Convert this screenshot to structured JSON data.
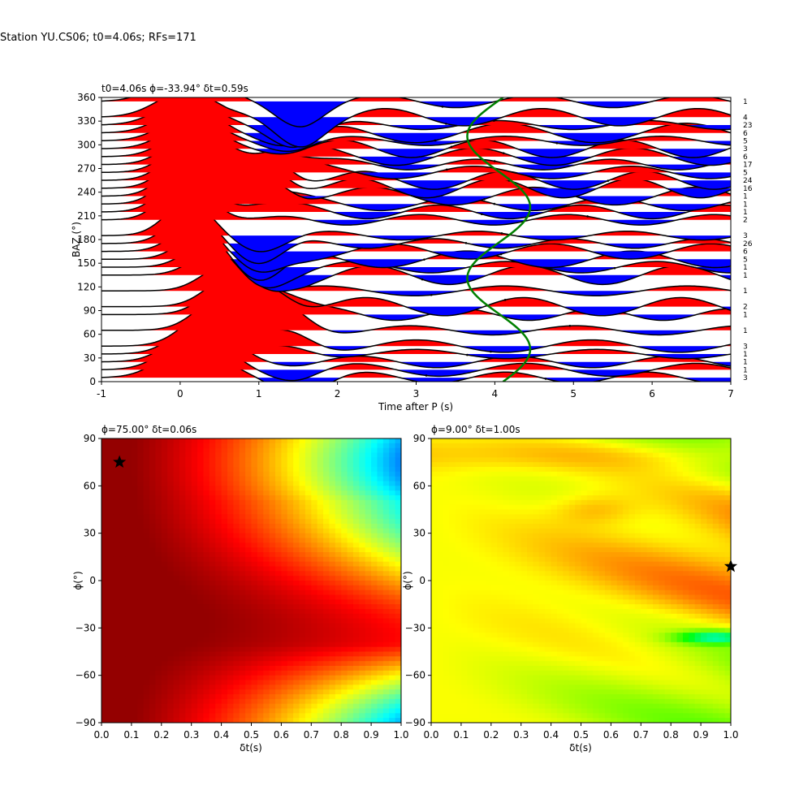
{
  "suptitle": "Station YU.CS06; t0=4.06s; RFs=171",
  "colors": {
    "positive": "#ff0000",
    "negative": "#0000ff",
    "curve": "#008000",
    "trace": "#000000"
  },
  "chart_data": [
    {
      "type": "line",
      "title": "t0=4.06s ϕ=-33.94° δt=0.59s",
      "xlabel": "Time after P (s)",
      "ylabel": "BAZ (°)",
      "xlim": [
        -1,
        7
      ],
      "ylim": [
        0,
        360
      ],
      "xticks": [
        -1,
        0,
        1,
        2,
        3,
        4,
        5,
        6,
        7
      ],
      "yticks": [
        0,
        30,
        60,
        90,
        120,
        150,
        180,
        210,
        240,
        270,
        300,
        330,
        360
      ],
      "baz_bins": [
        5,
        15,
        25,
        35,
        45,
        65,
        85,
        95,
        115,
        135,
        145,
        155,
        165,
        175,
        185,
        205,
        215,
        225,
        235,
        245,
        255,
        265,
        275,
        285,
        295,
        305,
        315,
        325,
        335,
        355
      ],
      "counts": [
        "3",
        "1",
        "1",
        "1",
        "3",
        "1",
        "1",
        "2",
        "1",
        "1",
        "1",
        "5",
        "6",
        "26",
        "3",
        "2",
        "1",
        "1",
        "1",
        "16",
        "24",
        "5",
        "17",
        "6",
        "3",
        "5",
        "6",
        "23",
        "4",
        "1"
      ],
      "split_curve": {
        "center": 4.05,
        "amplitude": 0.4,
        "period_deg": 180,
        "phase_deg": -33.94
      }
    },
    {
      "type": "heatmap",
      "title": "ϕ=75.00° δt=0.06s",
      "xlabel": "δt(s)",
      "ylabel": "ϕ(°)",
      "xlim": [
        0.0,
        1.0
      ],
      "ylim": [
        -90,
        90
      ],
      "xticks": [
        0.0,
        0.1,
        0.2,
        0.3,
        0.4,
        0.5,
        0.6,
        0.7,
        0.8,
        0.9,
        1.0
      ],
      "yticks": [
        -90,
        -60,
        -30,
        0,
        30,
        60,
        90
      ],
      "best": {
        "dt": 0.06,
        "phi": 75.0
      },
      "colormap": "jet"
    },
    {
      "type": "heatmap",
      "title": "ϕ=9.00° δt=1.00s",
      "xlabel": "δt(s)",
      "ylabel": "ϕ(°)",
      "xlim": [
        0.0,
        1.0
      ],
      "ylim": [
        -90,
        90
      ],
      "xticks": [
        0.0,
        0.1,
        0.2,
        0.3,
        0.4,
        0.5,
        0.6,
        0.7,
        0.8,
        0.9,
        1.0
      ],
      "yticks": [
        -90,
        -60,
        -30,
        0,
        30,
        60,
        90
      ],
      "best": {
        "dt": 1.0,
        "phi": 9.0
      },
      "colormap": "hsv"
    }
  ]
}
